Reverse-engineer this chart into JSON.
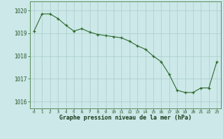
{
  "x": [
    0,
    1,
    2,
    3,
    4,
    5,
    6,
    7,
    8,
    9,
    10,
    11,
    12,
    13,
    14,
    15,
    16,
    17,
    18,
    19,
    20,
    21,
    22,
    23
  ],
  "y": [
    1019.1,
    1019.85,
    1019.85,
    1019.65,
    1019.35,
    1019.1,
    1019.2,
    1019.05,
    1018.95,
    1018.9,
    1018.85,
    1018.8,
    1018.65,
    1018.45,
    1018.3,
    1018.0,
    1017.75,
    1017.2,
    1016.5,
    1016.4,
    1016.4,
    1016.6,
    1016.6,
    1017.75
  ],
  "xlim": [
    -0.5,
    23.5
  ],
  "ylim": [
    1015.7,
    1020.4
  ],
  "yticks": [
    1016,
    1017,
    1018,
    1019,
    1020
  ],
  "xticks": [
    0,
    1,
    2,
    3,
    4,
    5,
    6,
    7,
    8,
    9,
    10,
    11,
    12,
    13,
    14,
    15,
    16,
    17,
    18,
    19,
    20,
    21,
    22,
    23
  ],
  "line_color": "#2d6a2d",
  "marker_color": "#2d6a2d",
  "bg_color": "#cce8e8",
  "grid_color": "#aacccc",
  "xlabel": "Graphe pression niveau de la mer (hPa)",
  "xlabel_color": "#1a3a1a",
  "tick_label_color": "#2d5a2d",
  "spine_color": "#5a8a5a"
}
